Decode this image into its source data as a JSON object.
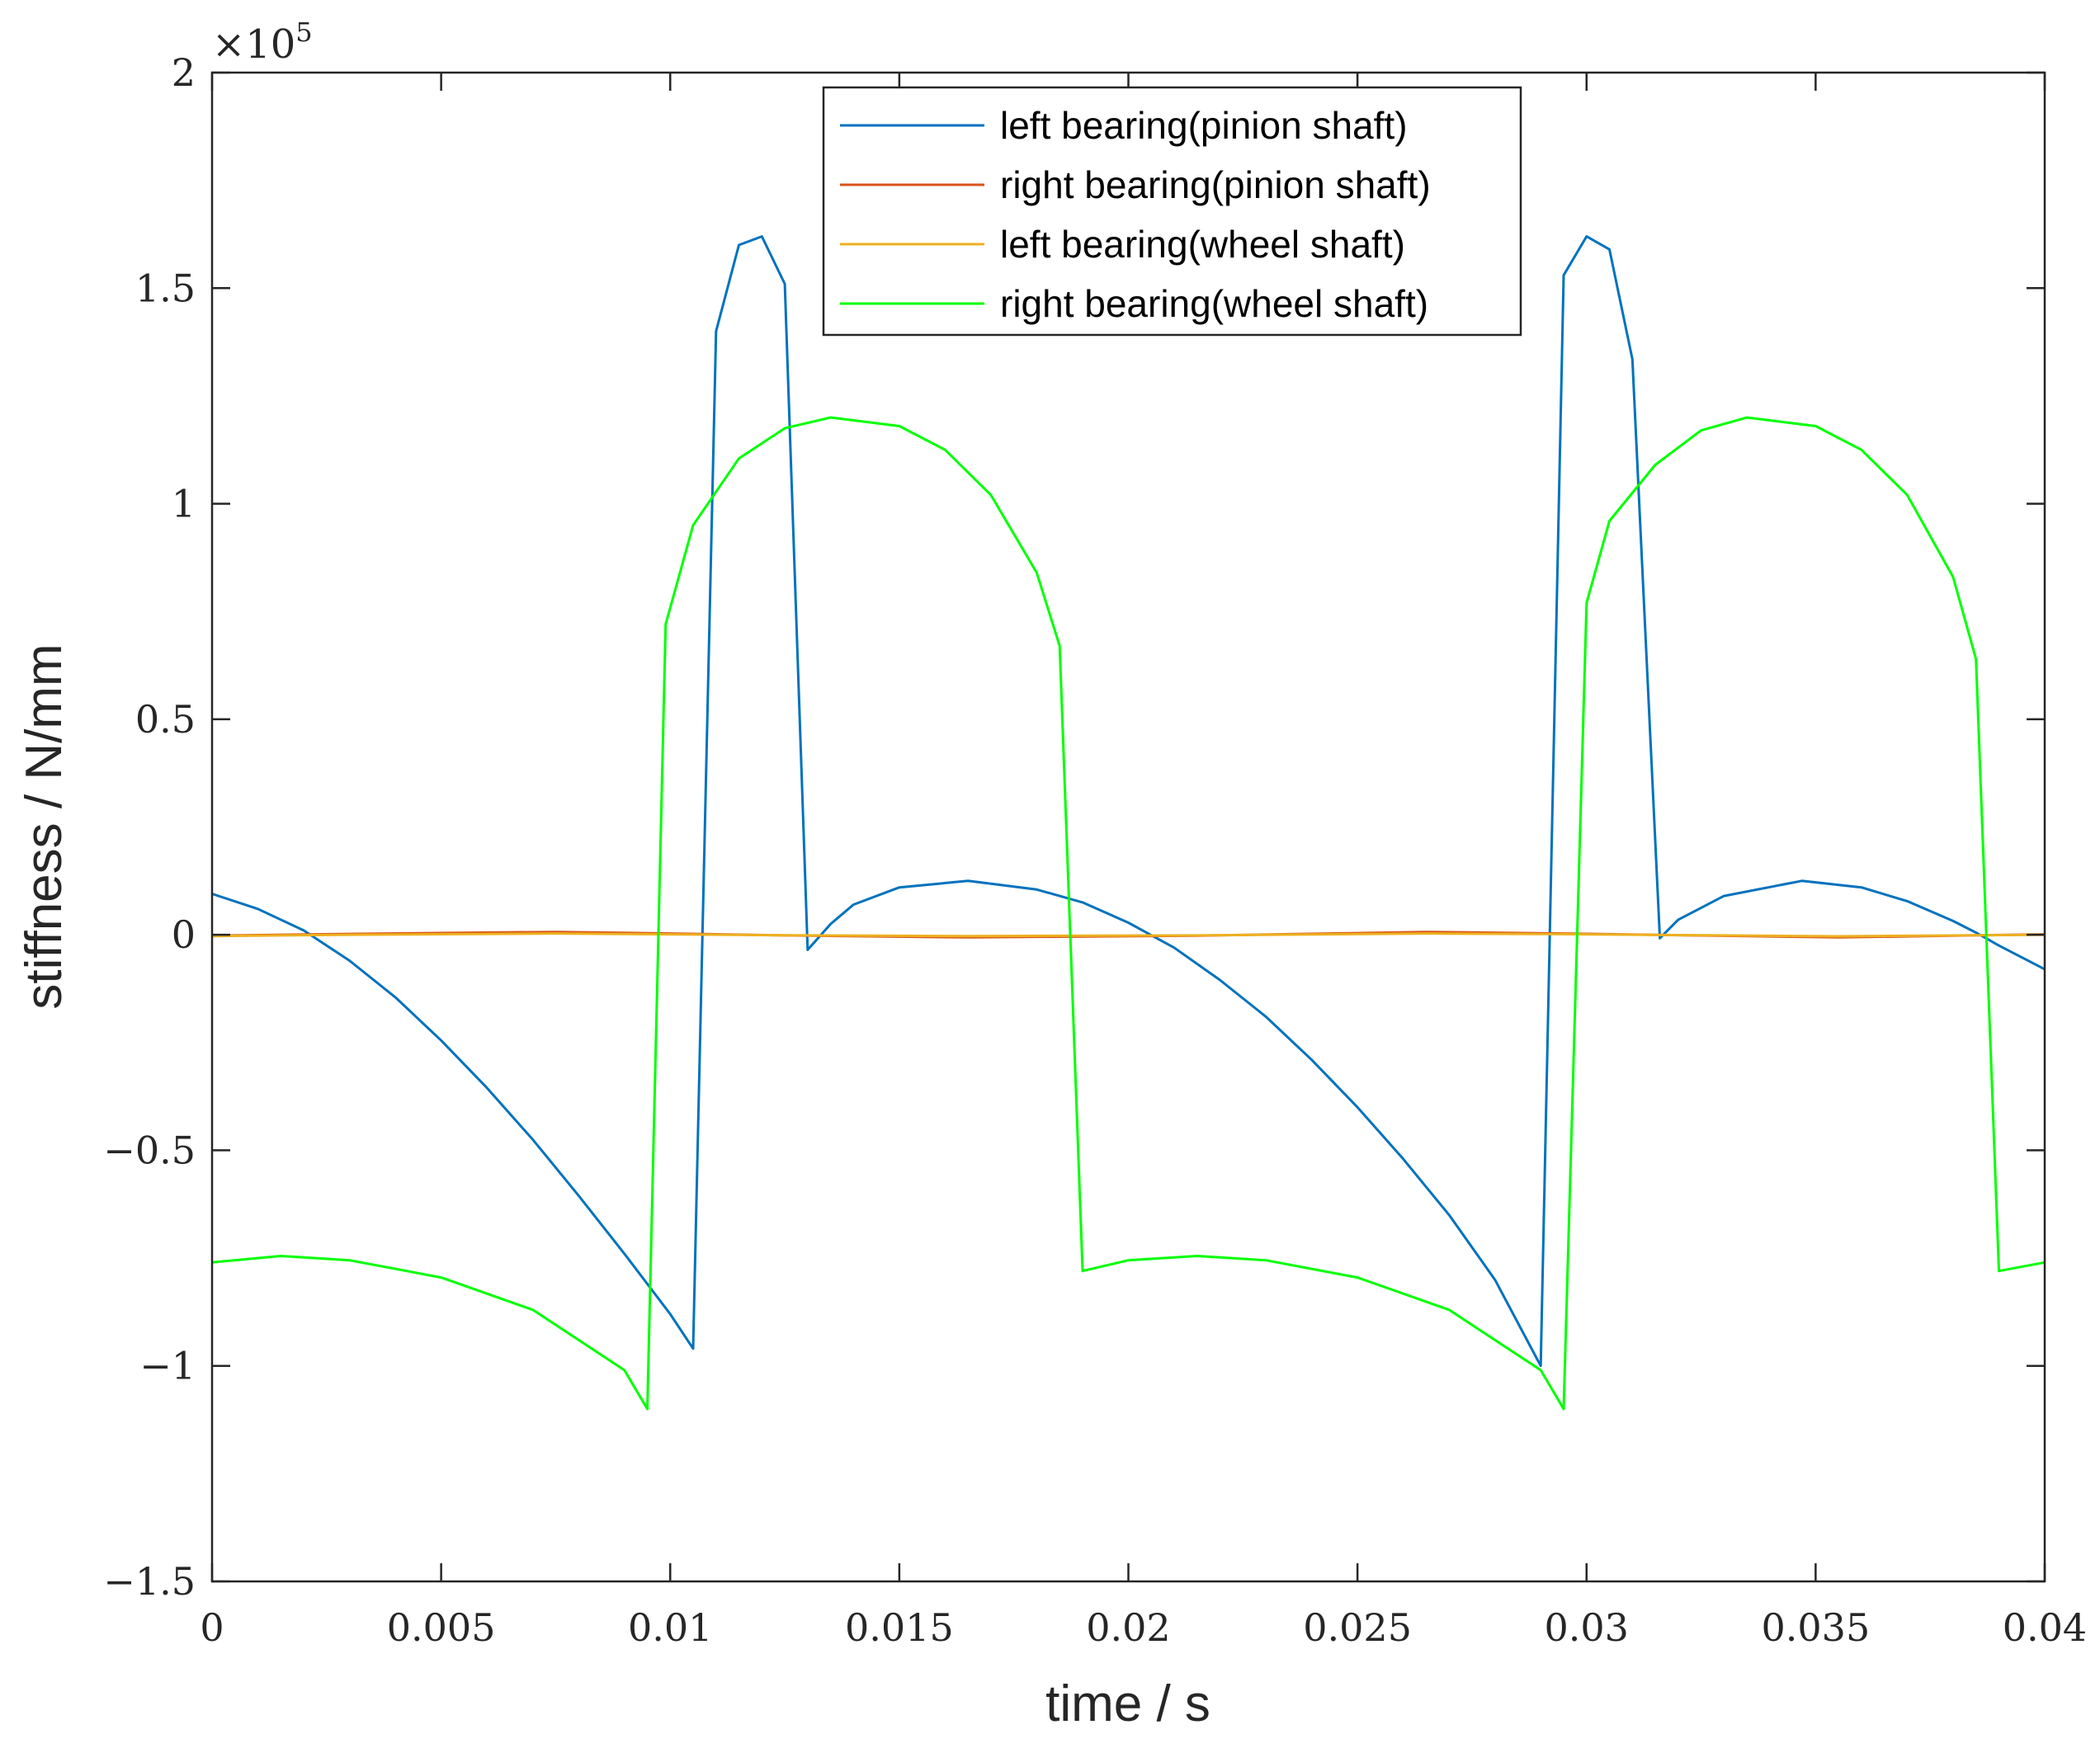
{
  "chart_data": {
    "type": "line",
    "title": "",
    "xlabel": "time / s",
    "ylabel": "stiffness / N/mm",
    "xlim": [
      0,
      0.04
    ],
    "ylim": [
      -150000,
      200000
    ],
    "y_exponent_base": "×10",
    "y_exponent_power": "5",
    "xticks": [
      0,
      0.005,
      0.01,
      0.015,
      0.02,
      0.025,
      0.03,
      0.035,
      0.04
    ],
    "xtick_labels": [
      "0",
      "0.005",
      "0.01",
      "0.015",
      "0.02",
      "0.025",
      "0.03",
      "0.035",
      "0.04"
    ],
    "yticks": [
      -150000,
      -100000,
      -50000,
      0,
      50000,
      100000,
      150000,
      200000
    ],
    "ytick_labels": [
      "−1.5",
      "−1",
      "−0.5",
      "0",
      "0.5",
      "1",
      "1.5",
      "2"
    ],
    "grid": false,
    "legend_position": "top-center",
    "series": [
      {
        "name": "left bearing(pinion shaft)",
        "color": "#0072BD",
        "points": [
          [
            0,
            9500
          ],
          [
            0.001,
            6000
          ],
          [
            0.002,
            1000
          ],
          [
            0.003,
            -6000
          ],
          [
            0.004,
            -14500
          ],
          [
            0.005,
            -24500
          ],
          [
            0.006,
            -35500
          ],
          [
            0.007,
            -47500
          ],
          [
            0.008,
            -60500
          ],
          [
            0.009,
            -74000
          ],
          [
            0.01,
            -88000
          ],
          [
            0.0105,
            -96000
          ],
          [
            0.011,
            140000
          ],
          [
            0.0115,
            160000
          ],
          [
            0.012,
            162000
          ],
          [
            0.0125,
            151000
          ],
          [
            0.013,
            -3500
          ],
          [
            0.0135,
            2500
          ],
          [
            0.014,
            7000
          ],
          [
            0.015,
            11000
          ],
          [
            0.0165,
            12500
          ],
          [
            0.018,
            10500
          ],
          [
            0.019,
            7500
          ],
          [
            0.02,
            2800
          ],
          [
            0.021,
            -3000
          ],
          [
            0.022,
            -10500
          ],
          [
            0.023,
            -19000
          ],
          [
            0.024,
            -29000
          ],
          [
            0.025,
            -40000
          ],
          [
            0.026,
            -52000
          ],
          [
            0.027,
            -65000
          ],
          [
            0.028,
            -80000
          ],
          [
            0.029,
            -100000
          ],
          [
            0.0295,
            153000
          ],
          [
            0.03,
            162000
          ],
          [
            0.0305,
            159000
          ],
          [
            0.031,
            133500
          ],
          [
            0.0316,
            -800
          ],
          [
            0.032,
            3500
          ],
          [
            0.033,
            9000
          ],
          [
            0.0347,
            12500
          ],
          [
            0.036,
            11000
          ],
          [
            0.037,
            7800
          ],
          [
            0.038,
            3200
          ],
          [
            0.0385,
            500
          ],
          [
            0.039,
            -2500
          ],
          [
            0.04,
            -8000
          ]
        ]
      },
      {
        "name": "right bearing(pinion shaft)",
        "color": "#D95319",
        "points": [
          [
            0,
            -200
          ],
          [
            0.003,
            200
          ],
          [
            0.0075,
            650
          ],
          [
            0.01,
            300
          ],
          [
            0.0125,
            -150
          ],
          [
            0.0165,
            -600
          ],
          [
            0.0215,
            -200
          ],
          [
            0.0265,
            650
          ],
          [
            0.0295,
            300
          ],
          [
            0.033,
            -250
          ],
          [
            0.0355,
            -600
          ],
          [
            0.04,
            100
          ]
        ]
      },
      {
        "name": "left bearing(wheel shaft)",
        "color": "#EDB120",
        "points": [
          [
            0,
            -300
          ],
          [
            0.003,
            0
          ],
          [
            0.0075,
            300
          ],
          [
            0.01,
            100
          ],
          [
            0.0125,
            -100
          ],
          [
            0.0165,
            -300
          ],
          [
            0.0215,
            -150
          ],
          [
            0.0265,
            300
          ],
          [
            0.0295,
            150
          ],
          [
            0.033,
            -150
          ],
          [
            0.0355,
            -350
          ],
          [
            0.04,
            0
          ]
        ]
      },
      {
        "name": "right bearing(wheel shaft)",
        "color": "#00FF00",
        "points": [
          [
            0,
            -76000
          ],
          [
            0.0015,
            -74500
          ],
          [
            0.003,
            -75500
          ],
          [
            0.005,
            -79500
          ],
          [
            0.007,
            -87000
          ],
          [
            0.009,
            -101000
          ],
          [
            0.0095,
            -110000
          ],
          [
            0.0099,
            72000
          ],
          [
            0.0105,
            95000
          ],
          [
            0.0115,
            110500
          ],
          [
            0.0125,
            117500
          ],
          [
            0.0135,
            120000
          ],
          [
            0.015,
            118000
          ],
          [
            0.016,
            112500
          ],
          [
            0.017,
            102000
          ],
          [
            0.018,
            84000
          ],
          [
            0.0185,
            67000
          ],
          [
            0.019,
            -78000
          ],
          [
            0.02,
            -75500
          ],
          [
            0.0215,
            -74500
          ],
          [
            0.023,
            -75500
          ],
          [
            0.025,
            -79500
          ],
          [
            0.027,
            -87000
          ],
          [
            0.029,
            -101000
          ],
          [
            0.0295,
            -110000
          ],
          [
            0.03,
            77000
          ],
          [
            0.0305,
            96000
          ],
          [
            0.0315,
            109000
          ],
          [
            0.0325,
            117000
          ],
          [
            0.0335,
            120000
          ],
          [
            0.035,
            118000
          ],
          [
            0.036,
            112500
          ],
          [
            0.037,
            102000
          ],
          [
            0.038,
            83000
          ],
          [
            0.0385,
            64000
          ],
          [
            0.039,
            -78000
          ],
          [
            0.04,
            -76000
          ]
        ]
      }
    ]
  }
}
